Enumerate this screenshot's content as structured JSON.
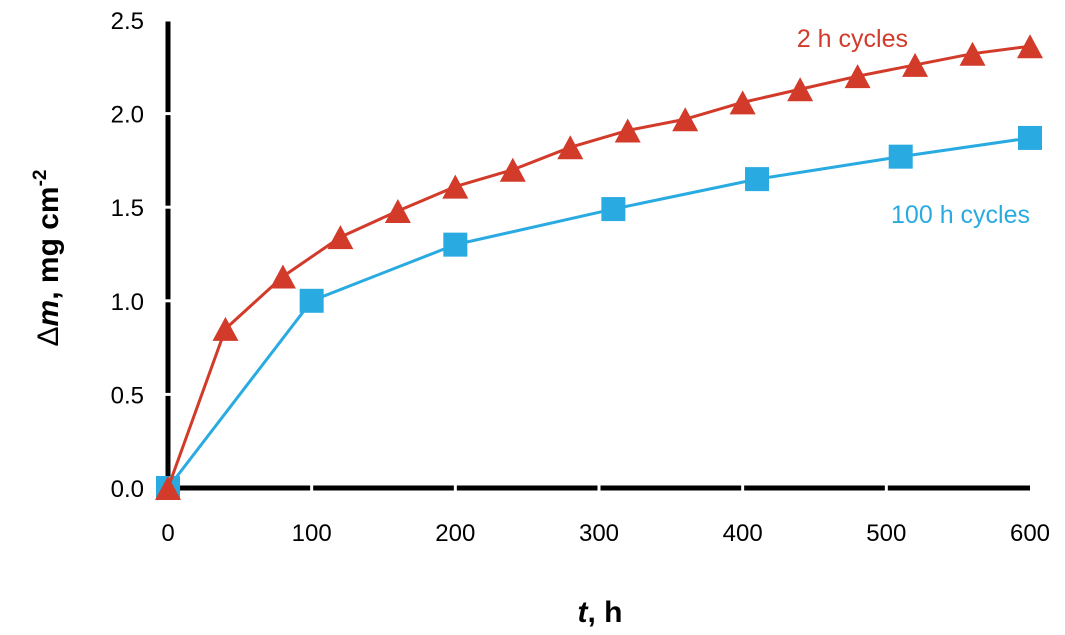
{
  "chart_data": {
    "type": "line",
    "xlabel": {
      "italic": "t",
      "rest": ", h"
    },
    "ylabel": {
      "symbol": "Δ",
      "italic": "m",
      "rest": ", mg cm",
      "superscript": "-2"
    },
    "xlim": [
      0,
      600
    ],
    "ylim": [
      0,
      2.5
    ],
    "x_ticks": [
      "0",
      "100",
      "200",
      "300",
      "400",
      "500",
      "600"
    ],
    "y_ticks": [
      "0.0",
      "0.5",
      "1.0",
      "1.5",
      "2.0",
      "2.5"
    ],
    "grid": false,
    "series": [
      {
        "name": "2 h cycles",
        "marker": "triangle",
        "color": "#d23a2a",
        "x": [
          0,
          40,
          80,
          120,
          160,
          200,
          240,
          280,
          320,
          360,
          400,
          440,
          480,
          520,
          560,
          600
        ],
        "y": [
          0.0,
          0.85,
          1.13,
          1.34,
          1.48,
          1.61,
          1.7,
          1.82,
          1.91,
          1.97,
          2.06,
          2.13,
          2.2,
          2.26,
          2.32,
          2.36
        ]
      },
      {
        "name": "100 h cycles",
        "marker": "square",
        "color": "#29abe2",
        "x": [
          0,
          100,
          200,
          310,
          410,
          510,
          600
        ],
        "y": [
          0.0,
          1.0,
          1.3,
          1.49,
          1.65,
          1.77,
          1.87
        ]
      }
    ]
  }
}
